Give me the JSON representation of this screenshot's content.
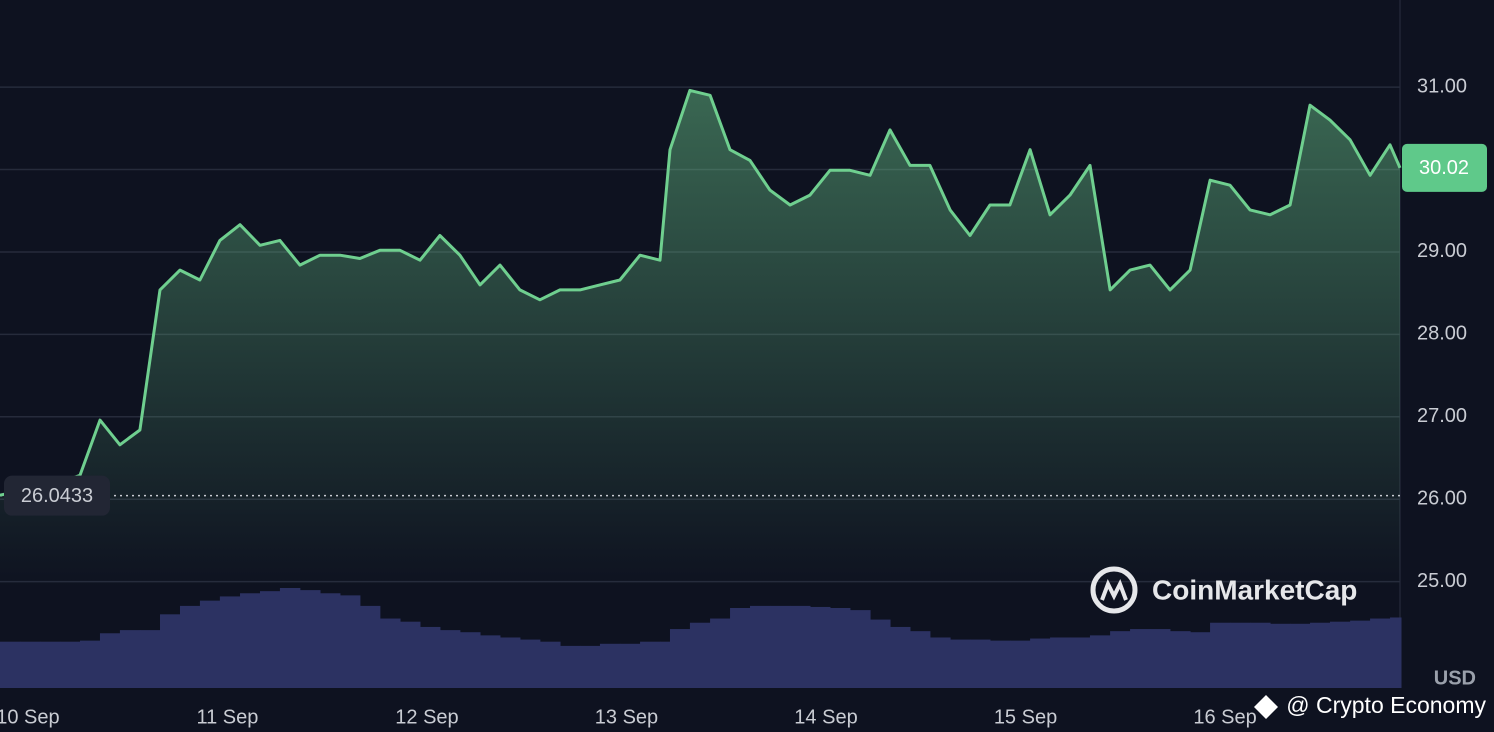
{
  "chart_data": {
    "type": "line",
    "x": [
      -0.14,
      -0.04,
      0.06,
      0.16,
      0.261,
      0.361,
      0.461,
      0.561,
      0.662,
      0.762,
      0.862,
      0.962,
      1.063,
      1.163,
      1.263,
      1.363,
      1.464,
      1.564,
      1.664,
      1.764,
      1.865,
      1.965,
      2.065,
      2.165,
      2.266,
      2.366,
      2.466,
      2.566,
      2.667,
      2.767,
      2.867,
      2.967,
      3.068,
      3.168,
      3.218,
      3.318,
      3.419,
      3.519,
      3.619,
      3.719,
      3.82,
      3.92,
      4.02,
      4.12,
      4.221,
      4.321,
      4.421,
      4.521,
      4.622,
      4.722,
      4.822,
      4.922,
      5.023,
      5.123,
      5.223,
      5.323,
      5.424,
      5.524,
      5.624,
      5.724,
      5.825,
      5.925,
      6.025,
      6.125,
      6.226,
      6.326,
      6.426,
      6.526,
      6.627,
      6.727,
      6.827,
      6.877
    ],
    "values": [
      26.05,
      26.1,
      26.15,
      26.2,
      26.29,
      26.96,
      26.66,
      26.84,
      28.54,
      28.78,
      28.66,
      29.14,
      29.33,
      29.08,
      29.14,
      28.84,
      28.96,
      28.96,
      28.92,
      29.02,
      29.02,
      28.9,
      29.2,
      28.96,
      28.6,
      28.84,
      28.54,
      28.42,
      28.54,
      28.54,
      28.6,
      28.66,
      28.96,
      28.9,
      30.24,
      30.96,
      30.9,
      30.24,
      30.11,
      29.75,
      29.57,
      29.69,
      29.99,
      29.99,
      29.93,
      30.48,
      30.05,
      30.05,
      29.51,
      29.2,
      29.57,
      29.57,
      30.24,
      29.45,
      29.69,
      30.05,
      28.54,
      28.78,
      28.84,
      28.54,
      28.78,
      29.87,
      29.81,
      29.51,
      29.45,
      29.57,
      30.78,
      30.6,
      30.36,
      29.93,
      30.3,
      30.02
    ],
    "color": "#6fcf8f",
    "volume": [
      44,
      44,
      44,
      44,
      45,
      52,
      55,
      55,
      70,
      78,
      83,
      87,
      90,
      92,
      95,
      93,
      90,
      88,
      78,
      66,
      63,
      58,
      55,
      53,
      50,
      48,
      46,
      44,
      40,
      40,
      42,
      42,
      44,
      44,
      56,
      62,
      66,
      76,
      78,
      78,
      78,
      77,
      76,
      74,
      65,
      58,
      54,
      48,
      46,
      46,
      45,
      45,
      47,
      48,
      48,
      50,
      54,
      56,
      56,
      54,
      53,
      62,
      62,
      62,
      61,
      61,
      62,
      63,
      64,
      66,
      67,
      67
    ],
    "volume_color": "#2c3262",
    "xlim": [
      -0.14,
      6.877
    ],
    "xticks": [
      {
        "value": 0,
        "label": "10 Sep"
      },
      {
        "value": 1,
        "label": "11 Sep"
      },
      {
        "value": 2,
        "label": "12 Sep"
      },
      {
        "value": 3,
        "label": "13 Sep"
      },
      {
        "value": 4,
        "label": "14 Sep"
      },
      {
        "value": 5,
        "label": "15 Sep"
      },
      {
        "value": 6,
        "label": "16 Sep"
      }
    ],
    "ylim": [
      23.71,
      32.02
    ],
    "yticks": [
      {
        "value": 25,
        "label": "25.00"
      },
      {
        "value": 26,
        "label": "26.00"
      },
      {
        "value": 27,
        "label": "27.00"
      },
      {
        "value": 28,
        "label": "28.00"
      },
      {
        "value": 29,
        "label": "29.00"
      },
      {
        "value": 30,
        "label": "30.00"
      },
      {
        "value": 31,
        "label": "31.00"
      }
    ],
    "grid": true,
    "reference": 26.0433,
    "current_price": 30.02,
    "axis_unit": "USD",
    "watermark": "CoinMarketCap",
    "credit": "@ Crypto Economy"
  }
}
